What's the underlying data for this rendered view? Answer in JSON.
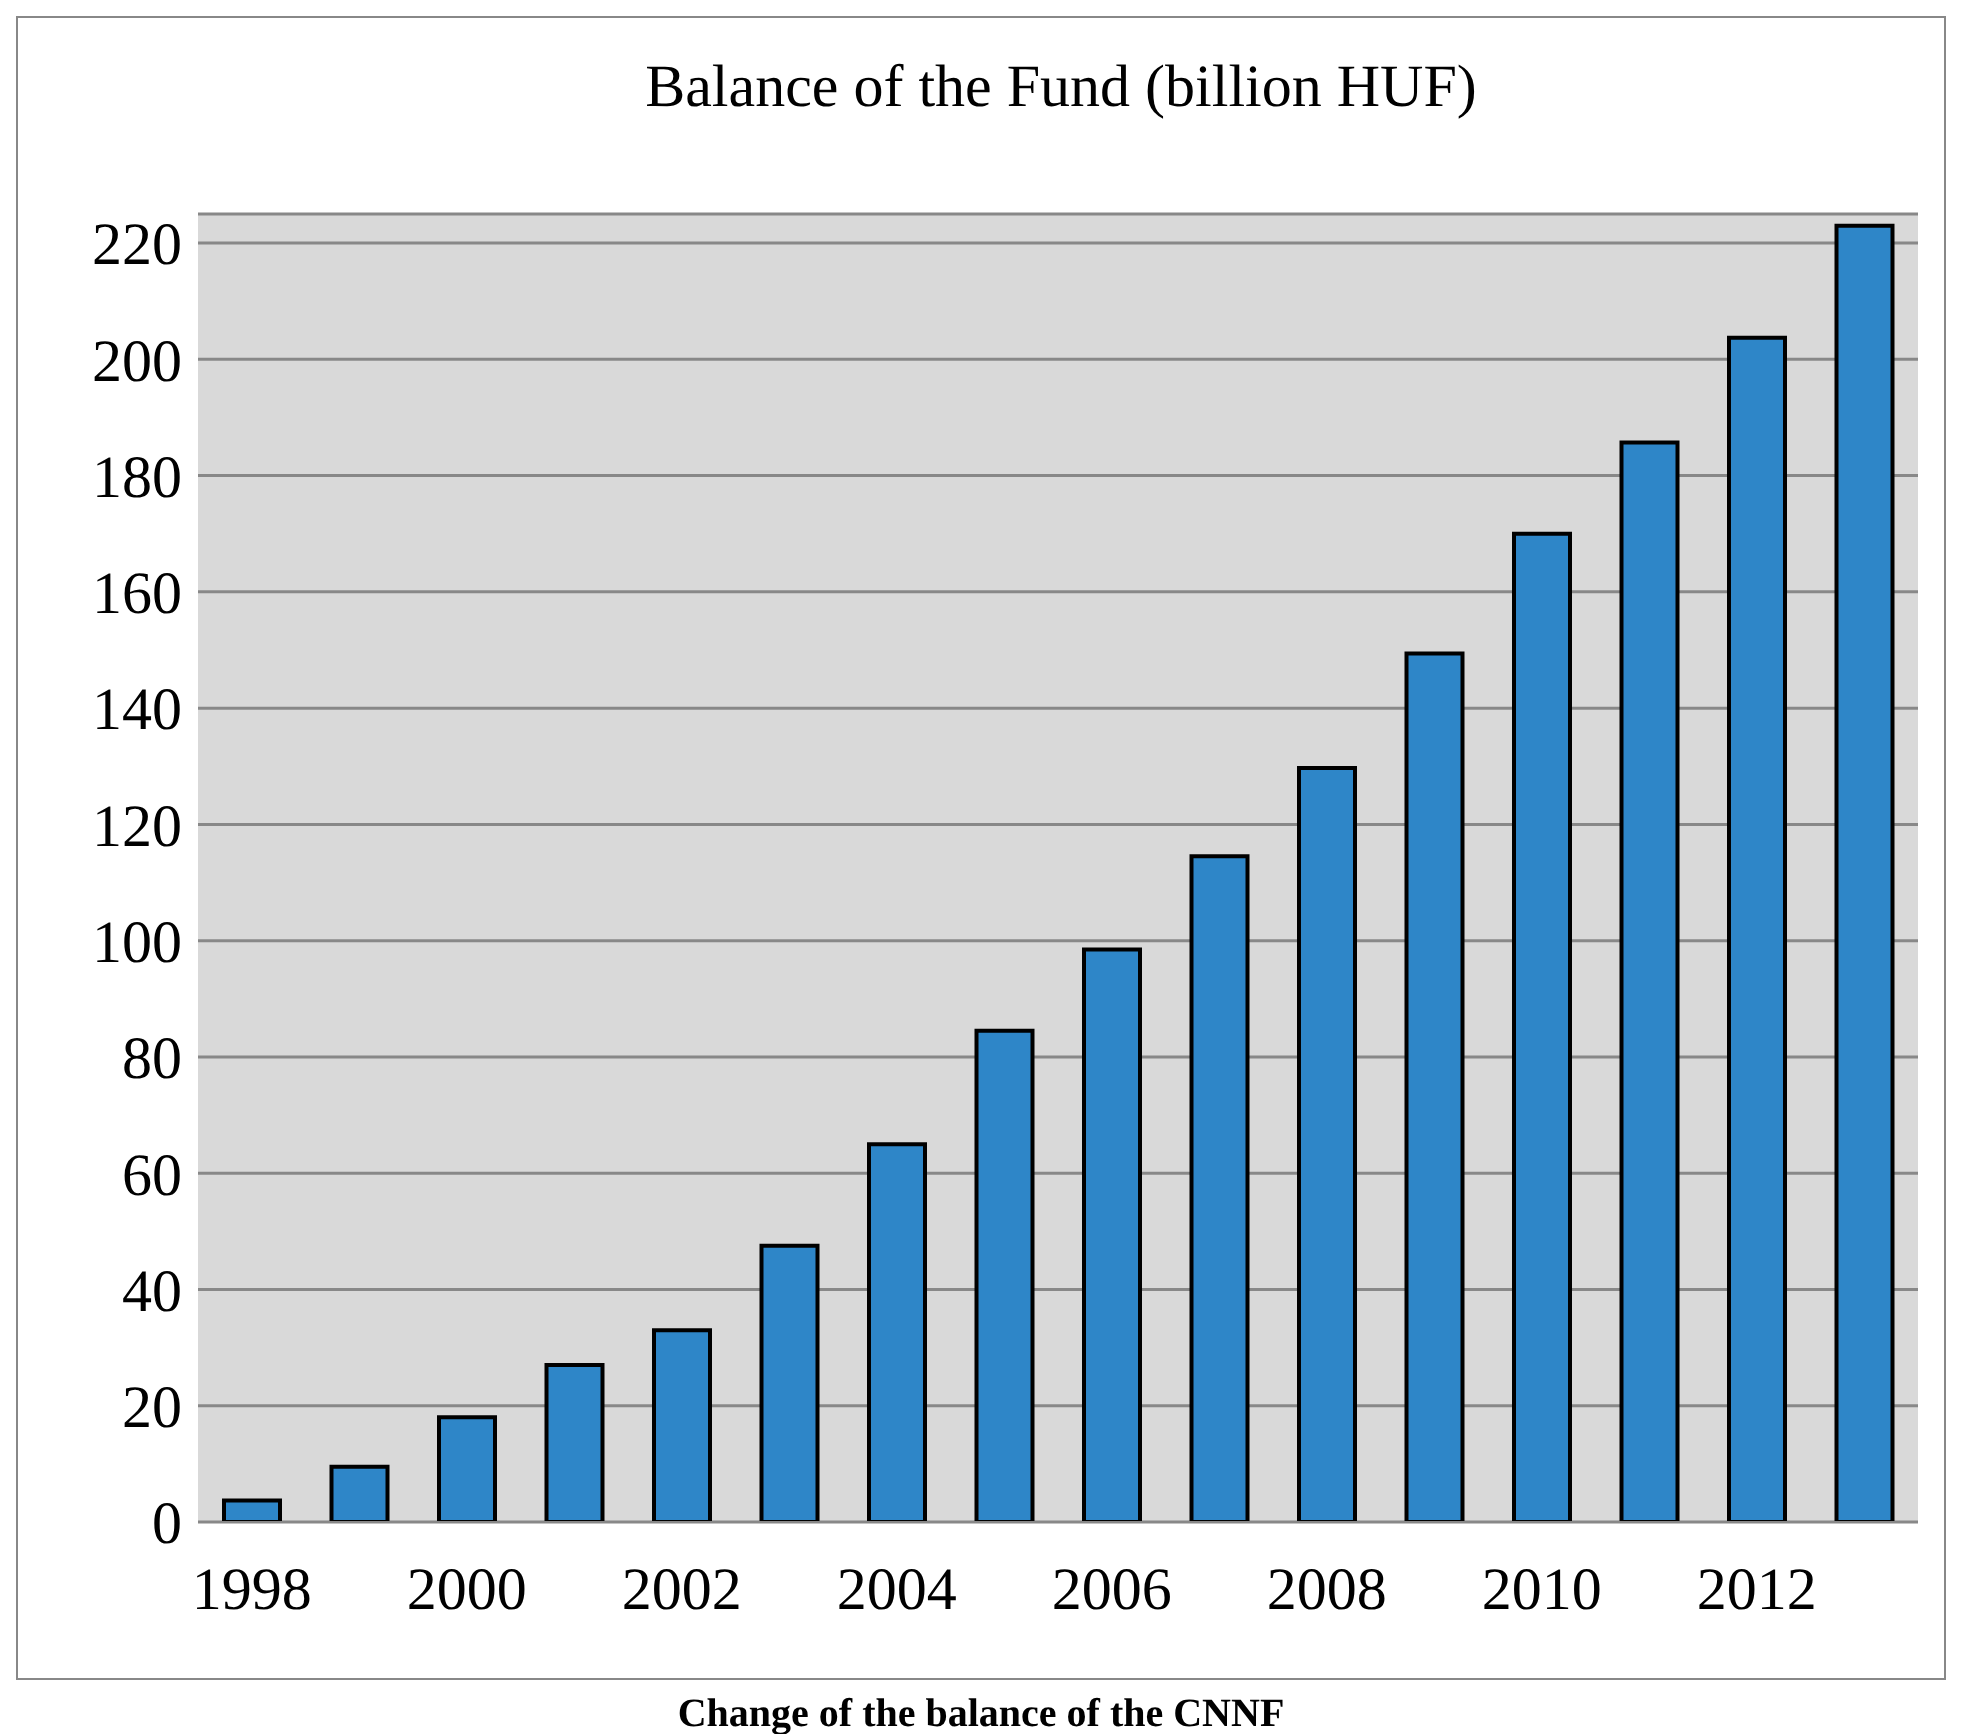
{
  "chart_data": {
    "type": "bar",
    "title": "Balance of the Fund (billion HUF)",
    "categories": [
      "1998",
      null,
      "2000",
      null,
      "2002",
      null,
      "2004",
      null,
      "2006",
      null,
      "2008",
      null,
      "2010",
      null,
      "2012",
      null
    ],
    "values": [
      3.7,
      9.5,
      18,
      27,
      33,
      47.5,
      65,
      84.5,
      98.5,
      114.5,
      129.7,
      149.4,
      170,
      185.7,
      203.7,
      223
    ],
    "color": "#2e86c8",
    "ylim": [
      0,
      225
    ],
    "yticks": [
      0,
      20,
      40,
      60,
      80,
      100,
      120,
      140,
      160,
      180,
      200,
      220
    ],
    "grid": "y",
    "annotations": [
      "Change of the balance of the CNNF"
    ]
  }
}
